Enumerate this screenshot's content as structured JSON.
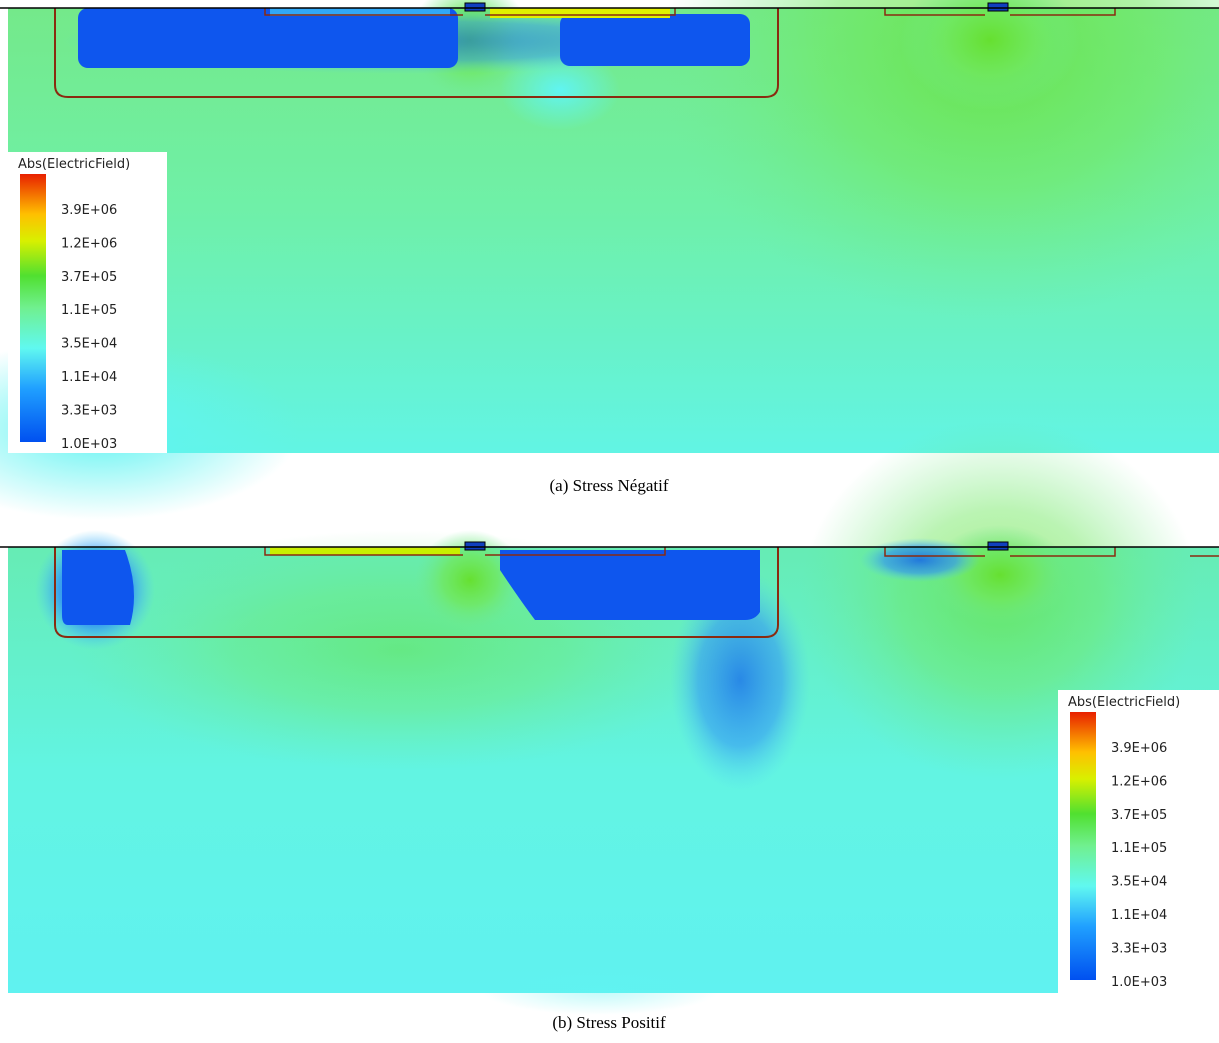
{
  "panels": [
    {
      "legend": {
        "title": "Abs(ElectricField)",
        "labels": [
          "3.9E+06",
          "1.2E+06",
          "3.7E+05",
          "1.1E+05",
          "3.5E+04",
          "1.1E+04",
          "3.3E+03",
          "1.0E+03"
        ]
      },
      "caption": "(a) Stress Négatif"
    },
    {
      "legend": {
        "title": "Abs(ElectricField)",
        "labels": [
          "3.9E+06",
          "1.2E+06",
          "3.7E+05",
          "1.1E+05",
          "3.5E+04",
          "1.1E+04",
          "3.3E+03",
          "1.0E+03"
        ]
      },
      "caption": "(b) Stress Positif"
    }
  ]
}
